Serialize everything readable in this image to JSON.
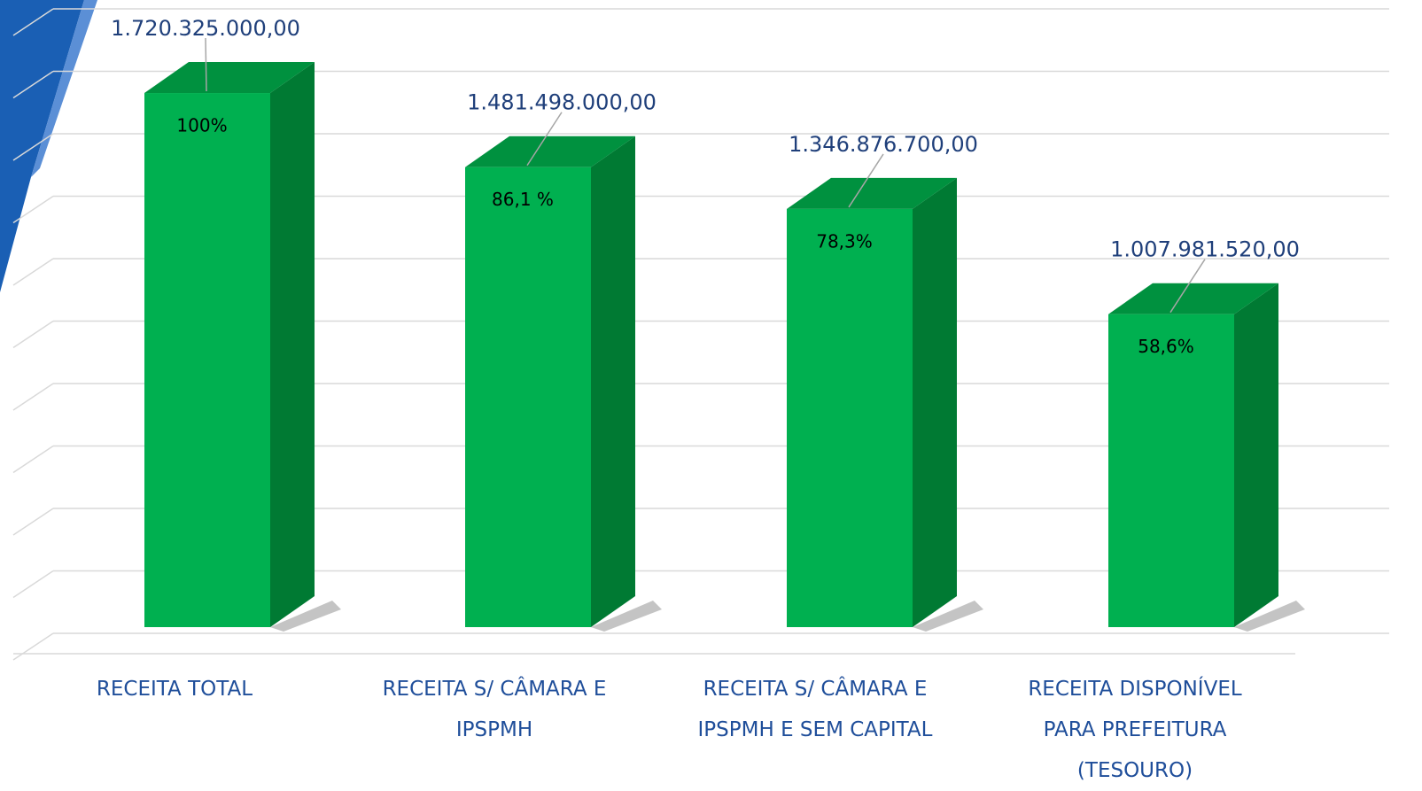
{
  "chart_data": {
    "type": "bar3d",
    "categories": [
      "RECEITA TOTAL",
      "RECEITA S/ CÂMARA E\nIPSPMH",
      "RECEITA S/ CÂMARA E\nIPSPMH E SEM CAPITAL",
      "RECEITA DISPONÍVEL\nPARA PREFEITURA\n(TESOURO)"
    ],
    "values": [
      1720325000,
      1481498000,
      1346876700,
      1007981520
    ],
    "value_labels": [
      "1.720.325.000,00",
      "1.481.498.000,00",
      "1.346.876.700,00",
      "1.007.981.520,00"
    ],
    "annotations": [
      "100%",
      "86,1 %",
      "78,3%",
      "58,6%"
    ],
    "color": "#00b050",
    "ylim": [
      0,
      2000000000
    ],
    "grid": true
  }
}
